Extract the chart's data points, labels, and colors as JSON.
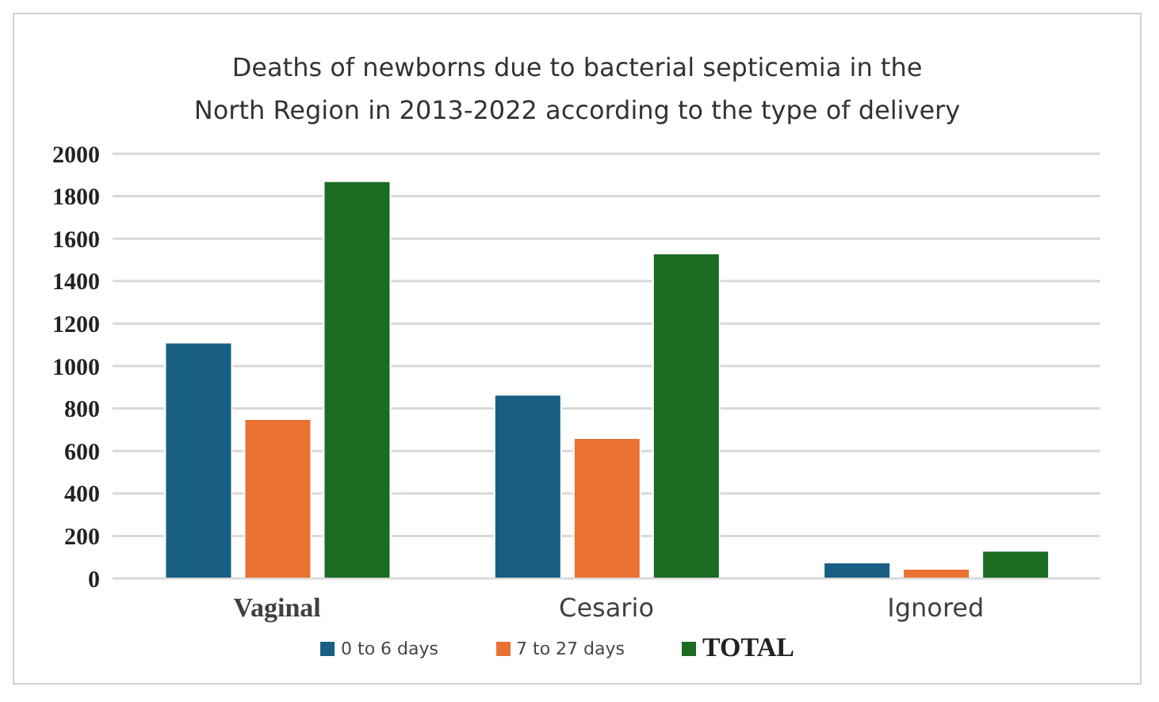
{
  "chart_data": {
    "type": "bar",
    "title": "Deaths of newborns due to bacterial septicemia in the\nNorth Region in 2013-2022 according to the type of delivery",
    "categories": [
      "Vaginal",
      "Cesario",
      "Ignored"
    ],
    "series": [
      {
        "name": "0 to 6 days",
        "color": "#175e82",
        "values": [
          1110,
          865,
          75
        ]
      },
      {
        "name": "7 to 27 days",
        "color": "#e97132",
        "values": [
          750,
          660,
          45
        ]
      },
      {
        "name": "TOTAL",
        "color": "#1b6b22",
        "values": [
          1870,
          1530,
          130
        ]
      }
    ],
    "ylim": [
      0,
      2000
    ],
    "yticks": [
      0,
      200,
      400,
      600,
      800,
      1000,
      1200,
      1400,
      1600,
      1800,
      2000
    ],
    "grid": "y",
    "legend": "bottom"
  }
}
